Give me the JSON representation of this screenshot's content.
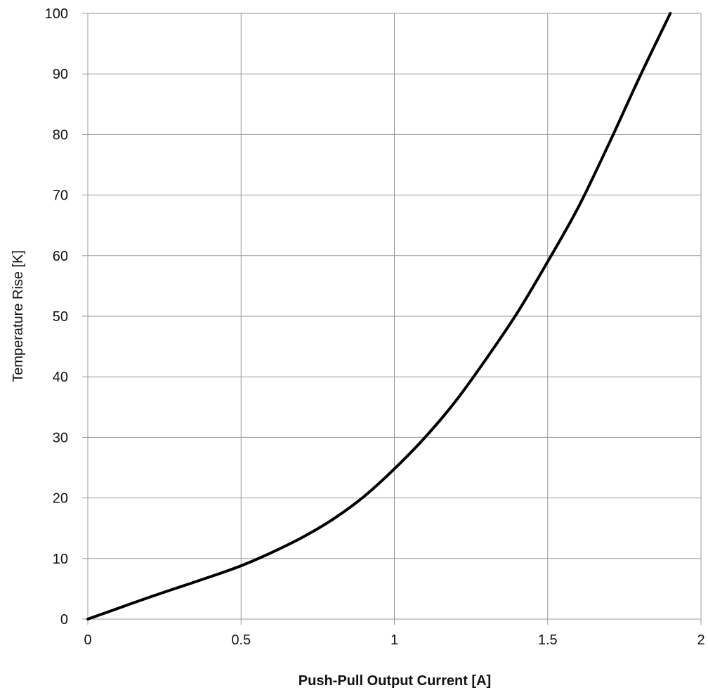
{
  "chart_data": {
    "type": "line",
    "title": "",
    "xlabel": "Push-Pull Output Current [A]",
    "ylabel": "Temperature Rise [K]",
    "xlim": [
      0,
      2
    ],
    "ylim": [
      0,
      100
    ],
    "x_ticks": [
      0,
      0.5,
      1,
      1.5,
      2
    ],
    "x_tick_labels": [
      "0",
      "0.5",
      "1",
      "1.5",
      "2"
    ],
    "y_ticks": [
      0,
      10,
      20,
      30,
      40,
      50,
      60,
      70,
      80,
      90,
      100
    ],
    "y_tick_labels": [
      "0",
      "10",
      "20",
      "30",
      "40",
      "50",
      "60",
      "70",
      "80",
      "90",
      "100"
    ],
    "grid": true,
    "series": [
      {
        "color": "#000000",
        "x": [
          0,
          0.1,
          0.2,
          0.3,
          0.4,
          0.5,
          0.6,
          0.7,
          0.8,
          0.9,
          1.0,
          1.1,
          1.2,
          1.3,
          1.4,
          1.5,
          1.6,
          1.7,
          1.8,
          1.9
        ],
        "y": [
          0,
          1.8,
          3.6,
          5.3,
          7.0,
          8.8,
          11.0,
          13.5,
          16.5,
          20.2,
          24.8,
          30.0,
          36.0,
          43.0,
          50.5,
          59.0,
          68.0,
          78.5,
          89.5,
          100
        ]
      }
    ]
  }
}
